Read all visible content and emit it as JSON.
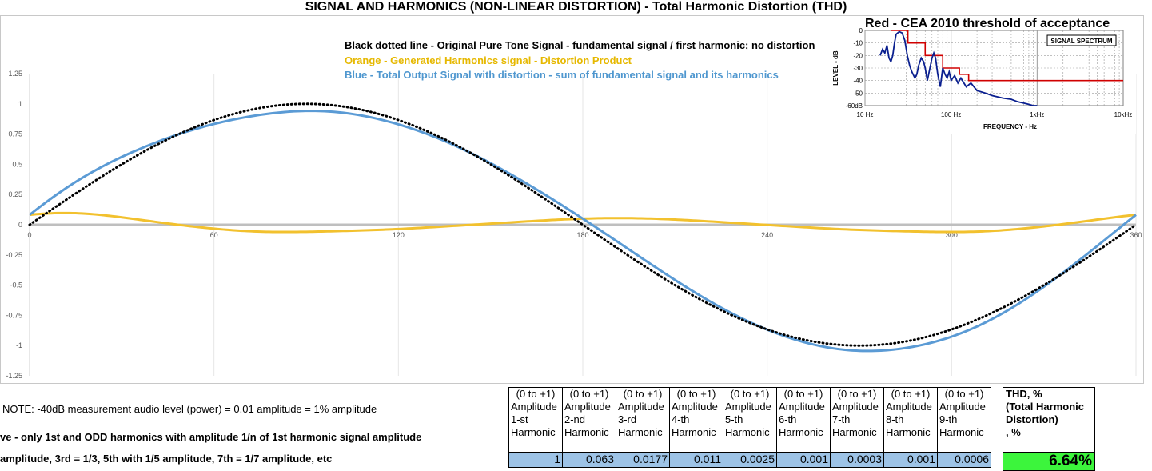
{
  "title": "SIGNAL AND HARMONICS (NON-LINEAR DISTORTION) - Total Harmonic Distortion (THD)",
  "legend": {
    "black": "Black dotted line - Original Pure Tone Signal - fundamental signal / first harmonic; no distortion",
    "orange": "Orange - Generated Harmonics signal - Distortion Product",
    "blue": "Blue - Total Output Signal with distortion - sum of fundamental signal and its harmonics"
  },
  "colors": {
    "original": "#000000",
    "harmonics": "#f2c12e",
    "total": "#5b9bd5",
    "axis": "#bfbfbf",
    "threshold": "#d00000",
    "spectrum": "#0a1f8f",
    "thd_bg": "#3cf53c",
    "amp_bg": "#9dc3e6"
  },
  "chart_data": [
    {
      "type": "line",
      "title": "SIGNAL AND HARMONICS (NON-LINEAR DISTORTION) - Total Harmonic Distortion (THD)",
      "x_ticks": [
        0,
        60,
        120,
        180,
        240,
        300,
        360
      ],
      "y_ticks": [
        1.25,
        1,
        0.75,
        0.5,
        0.25,
        0,
        -0.25,
        -0.5,
        -0.75,
        -1,
        -1.25
      ],
      "xlim": [
        0,
        360
      ],
      "ylim": [
        -1.25,
        1.25
      ],
      "grid": "vertical",
      "amplitudes": [
        1,
        0.063,
        0.0177,
        0.011,
        0.0025,
        0.001,
        0.0003,
        0.001,
        0.0006
      ],
      "series": [
        {
          "name": "Black dotted line - Original Pure Tone Signal",
          "style": "dotted",
          "color": "#000000",
          "harmonics": [
            1
          ]
        },
        {
          "name": "Orange - Generated Harmonics signal",
          "style": "solid",
          "color": "#f2c12e",
          "harmonics": [
            2,
            3,
            4,
            5,
            6,
            7,
            8,
            9
          ]
        },
        {
          "name": "Blue - Total Output Signal with distortion",
          "style": "solid",
          "color": "#5b9bd5",
          "harmonics": [
            1,
            2,
            3,
            4,
            5,
            6,
            7,
            8,
            9
          ]
        }
      ]
    },
    {
      "type": "line",
      "title": "SIGNAL SPECTRUM",
      "inset_title": "Red - CEA 2010 threshold of acceptance",
      "xlabel": "FREQUENCY - Hz",
      "ylabel": "LEVEL - dB",
      "x_scale": "log",
      "xlim": [
        10,
        10000
      ],
      "ylim": [
        -60,
        0
      ],
      "x_tick_labels": [
        "10 Hz",
        "100 Hz",
        "1kHz",
        "10kHz"
      ],
      "y_tick_labels": [
        "0",
        "-10",
        "-20",
        "-30",
        "-40",
        "-50",
        "-60dB"
      ],
      "series": [
        {
          "name": "threshold",
          "color": "#d00000",
          "x": [
            20,
            31.5,
            31.5,
            50,
            50,
            80,
            80,
            125,
            125,
            160,
            160,
            10000
          ],
          "y": [
            0,
            0,
            -10,
            -10,
            -20,
            -20,
            -30,
            -30,
            -35,
            -35,
            -40,
            -40
          ]
        },
        {
          "name": "spectrum",
          "color": "#0a1f8f",
          "x": [
            15,
            16,
            17,
            18,
            19,
            20,
            21,
            22,
            23,
            25,
            27,
            29,
            31,
            33,
            35,
            38,
            40,
            42,
            45,
            48,
            50,
            53,
            56,
            60,
            63,
            66,
            70,
            75,
            80,
            85,
            90,
            95,
            100,
            110,
            120,
            130,
            150,
            170,
            200,
            250,
            300,
            400,
            500,
            600,
            700,
            800,
            900,
            1000
          ],
          "y": [
            -20,
            -15,
            -18,
            -12,
            -22,
            -25,
            -20,
            -10,
            -3,
            -1,
            -2,
            -8,
            -20,
            -28,
            -33,
            -38,
            -35,
            -28,
            -22,
            -25,
            -30,
            -40,
            -32,
            -22,
            -18,
            -22,
            -35,
            -45,
            -30,
            -35,
            -38,
            -33,
            -40,
            -36,
            -42,
            -38,
            -45,
            -42,
            -48,
            -50,
            -52,
            -54,
            -55,
            -57,
            -58,
            -59,
            -60,
            -60
          ]
        }
      ]
    }
  ],
  "notes": {
    "note1": "NOTE: -40dB measurement audio level (power) = 0.01 amplitude = 1% amplitude",
    "note2": "ve - only 1st and ODD harmonics with amplitude 1/n of 1st harmonic signal amplitude",
    "note3": "amplitude, 3rd = 1/3, 5th with 1/5 amplitude,  7th = 1/7 amplitude, etc"
  },
  "harmonics_table": {
    "range": "(0 to +1)",
    "amplitude_label": "Amplitude",
    "harmonic_label": "Harmonic",
    "orders": [
      "1-st",
      "2-nd",
      "3-rd",
      "4-th",
      "5-th",
      "6-th",
      "7-th",
      "8-th",
      "9-th"
    ],
    "values": [
      "1",
      "0.063",
      "0.0177",
      "0.011",
      "0.0025",
      "0.001",
      "0.0003",
      "0.001",
      "0.0006"
    ]
  },
  "thd": {
    "label_1": "THD, %",
    "label_2": "(Total Harmonic",
    "label_3": "Distortion)",
    "label_4": ", %",
    "value": "6.64%"
  }
}
